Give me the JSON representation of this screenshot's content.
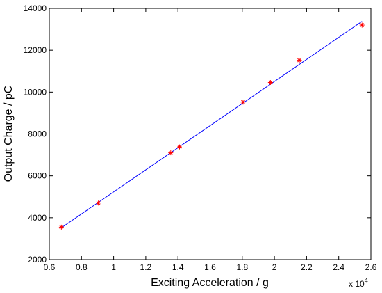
{
  "chart_data": {
    "type": "scatter",
    "xlabel": "Exciting Acceleration  / g",
    "ylabel": "Output Charge  / pC",
    "x_multiplier": {
      "base": "x 10",
      "exponent": "4"
    },
    "xlim": [
      0.6,
      2.6
    ],
    "ylim": [
      2000,
      14000
    ],
    "x_ticks": [
      0.6,
      0.8,
      1,
      1.2,
      1.4,
      1.6,
      1.8,
      2,
      2.2,
      2.4,
      2.6
    ],
    "x_tick_labels": [
      "0.6",
      "0.8",
      "1",
      "1.2",
      "1.4",
      "1.6",
      "1.8",
      "2",
      "2.2",
      "2.4",
      "2.6"
    ],
    "y_ticks": [
      2000,
      4000,
      6000,
      8000,
      10000,
      12000,
      14000
    ],
    "y_tick_labels": [
      "2000",
      "4000",
      "6000",
      "8000",
      "10000",
      "12000",
      "14000"
    ],
    "grid": false,
    "series": [
      {
        "kind": "points",
        "marker": "asterisk",
        "color": "#ff0000",
        "x": [
          0.675,
          0.905,
          1.355,
          1.41,
          1.805,
          1.975,
          2.155,
          2.545
        ],
        "y": [
          3550,
          4700,
          7100,
          7380,
          9520,
          10460,
          11520,
          13200
        ]
      },
      {
        "kind": "fit-line",
        "color": "#0000ff",
        "x": [
          0.675,
          2.545
        ],
        "y": [
          3520,
          13380
        ]
      }
    ]
  }
}
